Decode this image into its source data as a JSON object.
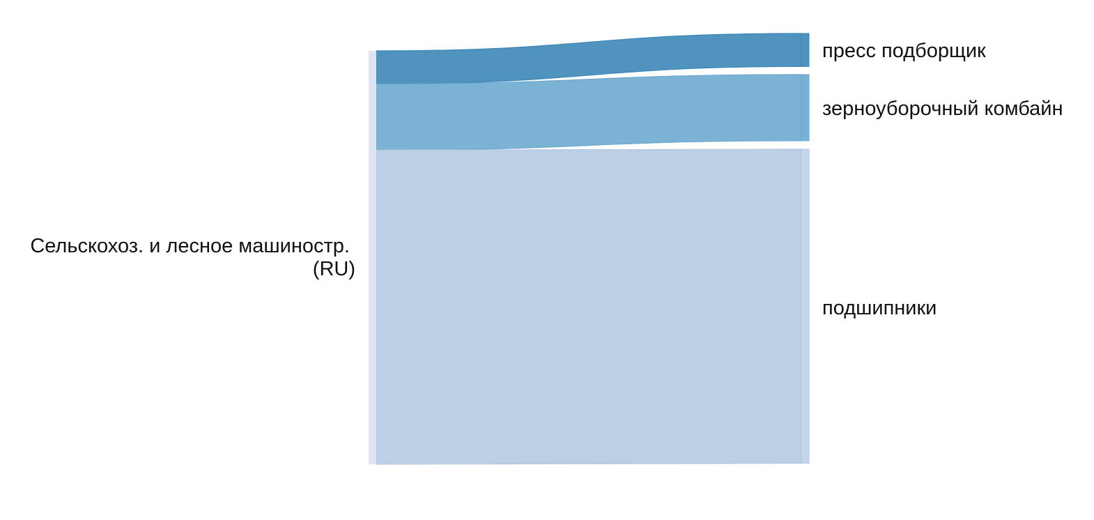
{
  "chart_data": {
    "type": "sankey",
    "nodes": [
      {
        "id": "source",
        "label_lines": [
          "Сельскохоз. и лесное машиностр.",
          "(RU)"
        ],
        "color": "#dde3f0"
      },
      {
        "id": "press",
        "label": "пресс подборщик",
        "color": "#4f94bf"
      },
      {
        "id": "combine",
        "label": "зерноуборочный комбайн",
        "color": "#78b1d4"
      },
      {
        "id": "bearings",
        "label": "подшипники",
        "color": "#c5d5ea"
      }
    ],
    "links": [
      {
        "source": "source",
        "target": "press",
        "value": 1,
        "color": "#4a90bd"
      },
      {
        "source": "source",
        "target": "combine",
        "value": 2,
        "color": "#78b1d4"
      },
      {
        "source": "source",
        "target": "bearings",
        "value": 9.5,
        "color": "#b9cde4"
      }
    ]
  }
}
